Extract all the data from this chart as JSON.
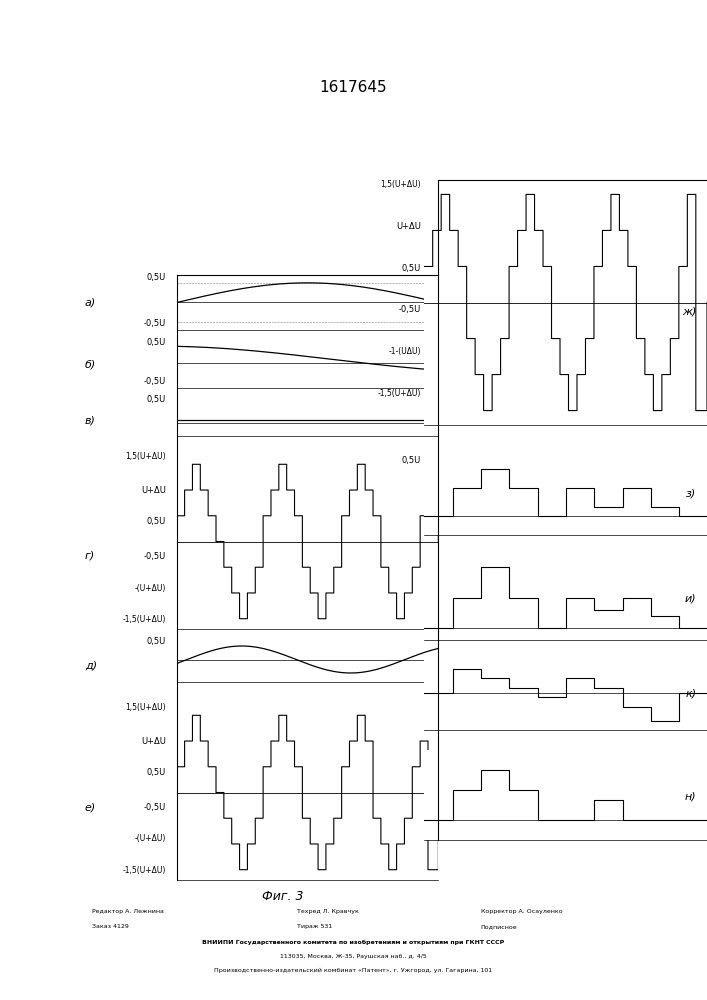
{
  "title": "1617645",
  "fig_label": "Фиг. 3",
  "background_color": "#ffffff",
  "line_color": "#000000",
  "left_labels": {
    "a": "а)",
    "b": "б)",
    "v": "в)",
    "g": "г)",
    "d": "д)",
    "e": "е)"
  },
  "right_labels": {
    "zh": "ж)",
    "z": "з)",
    "i": "и)",
    "k": "к)",
    "l": "н)"
  },
  "footer_left": [
    "Редактор А. Лежнина",
    "Заказ 4129"
  ],
  "footer_mid": [
    "Техред Л. Кравчук",
    "Тираж 531"
  ],
  "footer_right": [
    "Корректор А. Осауленко",
    "Подписное"
  ],
  "footer_vnipi": "ВНИИПИ Государственного комитета по изобретениям и открытиям при ГКНТ СССР",
  "footer_addr": "113035, Москва, Ж-35, Раушская наб., д. 4/5",
  "footer_pub": "Производственно-издательский комбинат «Патент», г. Ужгород, ул. Гагарина, 101"
}
